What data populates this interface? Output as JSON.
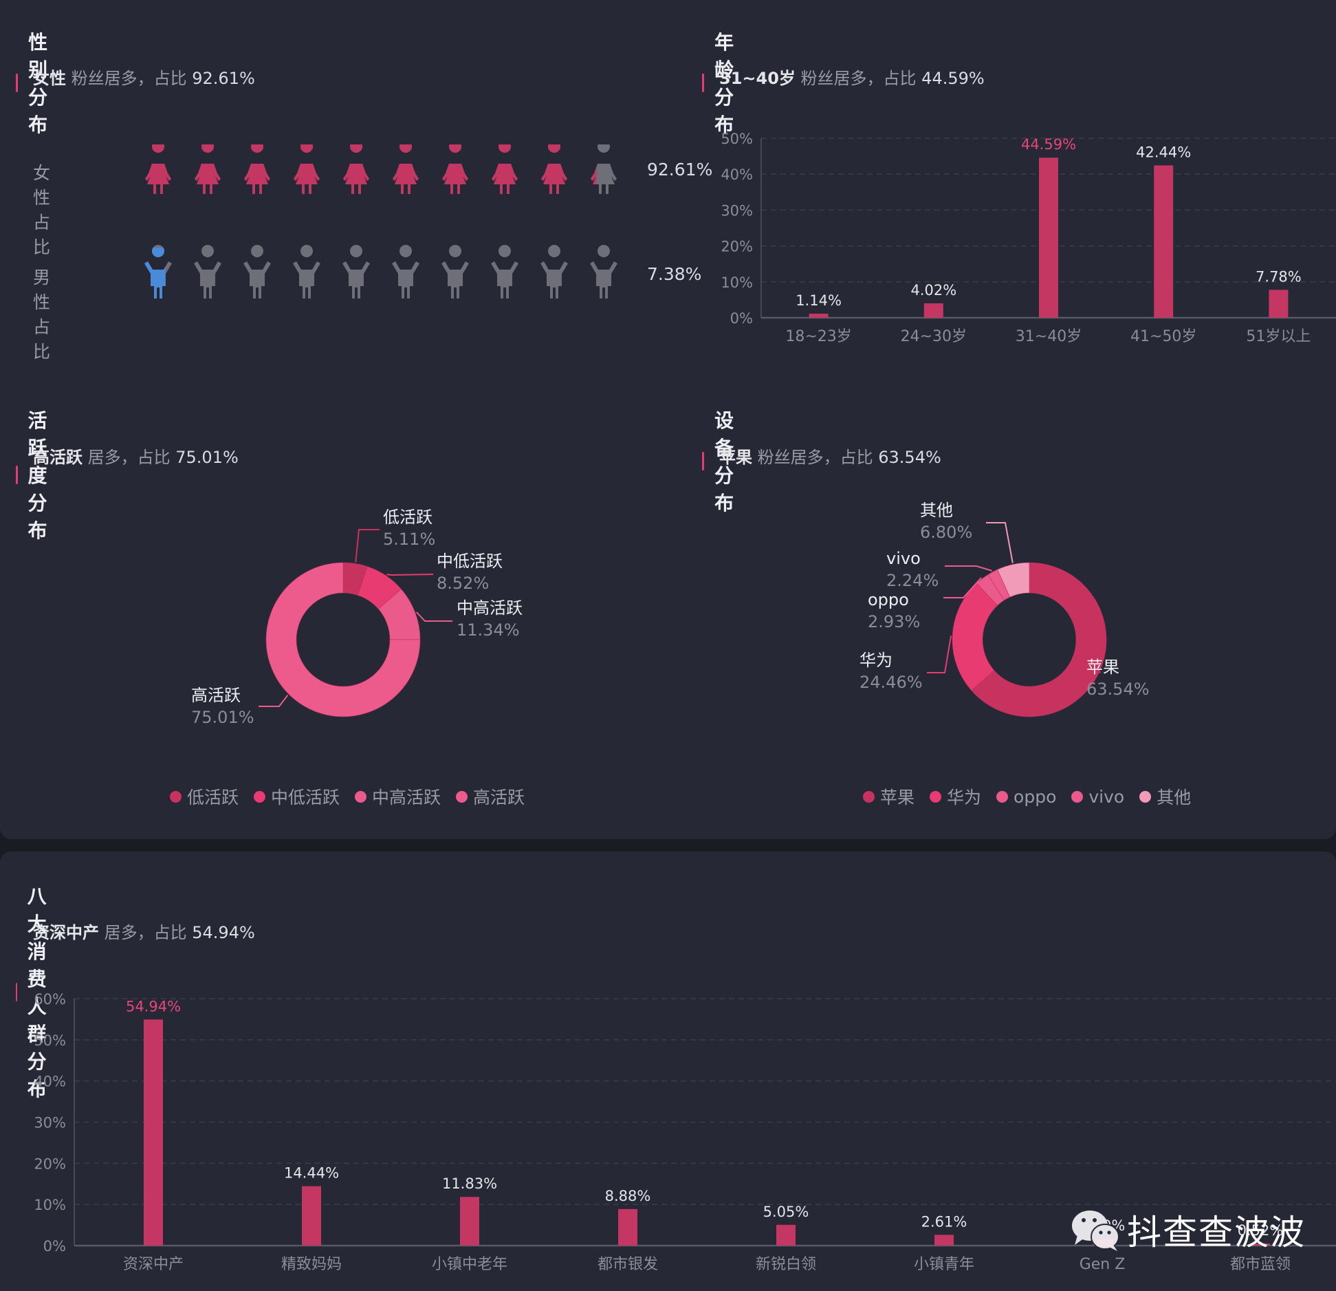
{
  "theme": {
    "accent": "#e83b72",
    "bar": "#c33762",
    "highlight_label": "#e8467a",
    "female_icon": "#c33762",
    "male_icon": "#4a8ad8",
    "inactive_icon": "#6e6f78"
  },
  "gender": {
    "title": "性别分布",
    "summary": {
      "lead": "女性",
      "mid": " 粉丝居多，占比 ",
      "value": "92.61%"
    },
    "rows": [
      {
        "label": "女性占比",
        "pct": "92.61%",
        "value": 92.61,
        "icon": "female-icon"
      },
      {
        "label": "男性占比",
        "pct": "7.38%",
        "value": 7.38,
        "icon": "male-icon"
      }
    ]
  },
  "age": {
    "title": "年龄分布",
    "summary": {
      "lead": "31~40岁",
      "mid": " 粉丝居多，占比 ",
      "value": "44.59%"
    }
  },
  "activity": {
    "title": "活跃度分布",
    "summary": {
      "lead": "高活跃",
      "mid": " 居多，占比 ",
      "value": "75.01%"
    },
    "legend": [
      "低活跃",
      "中低活跃",
      "中高活跃",
      "高活跃"
    ]
  },
  "device": {
    "title": "设备分布",
    "summary": {
      "lead": "苹果",
      "mid": " 粉丝居多，占比 ",
      "value": "63.54%"
    },
    "legend": [
      "苹果",
      "华为",
      "oppo",
      "vivo",
      "其他"
    ]
  },
  "consumer": {
    "title": "八大消费人群分布",
    "summary": {
      "lead": "资深中产",
      "mid": " 居多，占比 ",
      "value": "54.94%"
    }
  },
  "watermark": {
    "text": "抖查查波波"
  },
  "chart_data": [
    {
      "id": "gender",
      "type": "pictorial",
      "title": "性别分布",
      "categories": [
        "女性占比",
        "男性占比"
      ],
      "values": [
        92.61,
        7.38
      ],
      "icons_per_row": 10
    },
    {
      "id": "age",
      "type": "bar",
      "title": "年龄分布",
      "categories": [
        "18~23岁",
        "24~30岁",
        "31~40岁",
        "41~50岁",
        "51岁以上"
      ],
      "values": [
        1.14,
        4.02,
        44.59,
        42.44,
        7.78
      ],
      "labels": [
        "1.14%",
        "4.02%",
        "44.59%",
        "42.44%",
        "7.78%"
      ],
      "highlight_index": 2,
      "ylim": [
        0,
        50
      ],
      "yticks": [
        "0%",
        "10%",
        "20%",
        "30%",
        "40%",
        "50%"
      ],
      "grid": true,
      "xlabel": "",
      "ylabel": ""
    },
    {
      "id": "activity",
      "type": "pie",
      "donut": true,
      "title": "活跃度分布",
      "categories": [
        "低活跃",
        "中低活跃",
        "中高活跃",
        "高活跃"
      ],
      "values": [
        5.11,
        8.52,
        11.34,
        75.01
      ],
      "labels": [
        "5.11%",
        "8.52%",
        "11.34%",
        "75.01%"
      ],
      "colors": [
        "#c8325e",
        "#e83b72",
        "#ea5b8c",
        "#ec5b8c"
      ],
      "legend_position": "bottom"
    },
    {
      "id": "device",
      "type": "pie",
      "donut": true,
      "title": "设备分布",
      "categories": [
        "苹果",
        "华为",
        "oppo",
        "vivo",
        "其他"
      ],
      "values": [
        63.54,
        24.46,
        2.93,
        2.24,
        6.8
      ],
      "labels": [
        "63.54%",
        "24.46%",
        "2.93%",
        "2.24%",
        "6.80%"
      ],
      "colors": [
        "#c8325e",
        "#e83b72",
        "#ea5b8c",
        "#ec5a8b",
        "#f29bb8"
      ],
      "legend_position": "bottom"
    },
    {
      "id": "consumer",
      "type": "bar",
      "title": "八大消费人群分布",
      "categories": [
        "资深中产",
        "精致妈妈",
        "小镇中老年",
        "都市银发",
        "新锐白领",
        "小镇青年",
        "Gen Z",
        "都市蓝领"
      ],
      "values": [
        54.94,
        14.44,
        11.83,
        8.88,
        5.05,
        2.61,
        1.7,
        0.52
      ],
      "labels": [
        "54.94%",
        "14.44%",
        "11.83%",
        "8.88%",
        "5.05%",
        "2.61%",
        "1.70%",
        "0.52%"
      ],
      "highlight_index": 0,
      "ylim": [
        0,
        60
      ],
      "yticks": [
        "0%",
        "10%",
        "20%",
        "30%",
        "40%",
        "50%",
        "60%"
      ],
      "grid": true,
      "xlabel": "",
      "ylabel": ""
    }
  ]
}
